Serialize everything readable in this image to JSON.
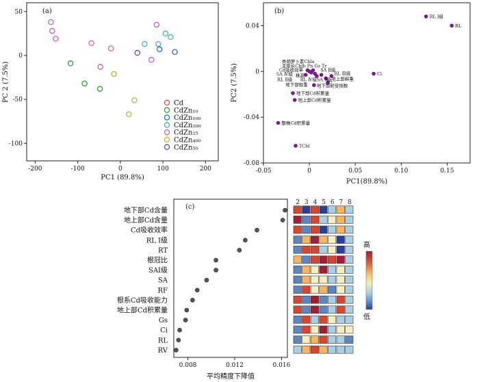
{
  "panels": {
    "a": {
      "label": "(a)",
      "xlabel": "PC1 (89.8%)",
      "ylabel": "PC 2 (7.5%)",
      "xlim": [
        -220,
        230
      ],
      "ylim": [
        -120,
        60
      ],
      "xticks": [
        "-200",
        "-100",
        "0",
        "100",
        "200"
      ],
      "xtick_values": [
        -200,
        -100,
        0,
        100,
        200
      ],
      "yticks": [
        "50",
        "0",
        "-50",
        "-100"
      ],
      "ytick_values": [
        50,
        0,
        -50,
        -100
      ],
      "legend_position": "right-bottom",
      "legend": [
        {
          "key": "Cd",
          "label": "Cd",
          "color": "#d94f4f"
        },
        {
          "key": "CdZn10",
          "label": "CdZn₁₀",
          "color": "#3a9a3a"
        },
        {
          "key": "CdZn100",
          "label": "CdZn₁₀₀",
          "color": "#2a6fbf"
        },
        {
          "key": "CdZn200",
          "label": "CdZn₂₀₀",
          "color": "#4ab0c8"
        },
        {
          "key": "CdZn25",
          "label": "CdZn₂₅",
          "color": "#d060b8"
        },
        {
          "key": "CdZn400",
          "label": "CdZn₄₀₀",
          "color": "#c9b22a"
        },
        {
          "key": "CdZn50",
          "label": "CdZn₅₀",
          "color": "#6a4aa8"
        }
      ],
      "points": [
        {
          "x": -163,
          "y": 38,
          "g": "CdZn25"
        },
        {
          "x": -160,
          "y": 28,
          "g": "CdZn25"
        },
        {
          "x": -152,
          "y": 19,
          "g": "CdZn25"
        },
        {
          "x": -117,
          "y": -9,
          "g": "CdZn10"
        },
        {
          "x": -84,
          "y": -32,
          "g": "CdZn10"
        },
        {
          "x": -68,
          "y": 14,
          "g": "CdZn25"
        },
        {
          "x": -47,
          "y": -13,
          "g": "CdZn25"
        },
        {
          "x": -48,
          "y": -38,
          "g": "CdZn10"
        },
        {
          "x": -22,
          "y": 8,
          "g": "CdZn25"
        },
        {
          "x": -15,
          "y": -21,
          "g": "CdZn400"
        },
        {
          "x": 20,
          "y": -67,
          "g": "CdZn400"
        },
        {
          "x": 33,
          "y": -51,
          "g": "CdZn400"
        },
        {
          "x": 40,
          "y": 3,
          "g": "CdZn50"
        },
        {
          "x": 57,
          "y": 13,
          "g": "CdZn200"
        },
        {
          "x": 73,
          "y": -5,
          "g": "CdZn25"
        },
        {
          "x": 85,
          "y": 35,
          "g": "CdZn25"
        },
        {
          "x": 89,
          "y": 13,
          "g": "CdZn200"
        },
        {
          "x": 92,
          "y": 7,
          "g": "CdZn100"
        },
        {
          "x": 106,
          "y": 25,
          "g": "CdZn200"
        },
        {
          "x": 118,
          "y": 21,
          "g": "CdZn200"
        },
        {
          "x": 128,
          "y": 4,
          "g": "CdZn100"
        }
      ]
    },
    "b": {
      "label": "(b)",
      "xlabel": "PC1(89.8%)",
      "ylabel": "PC2 (7.5%)",
      "xlim": [
        -0.05,
        0.175
      ],
      "ylim": [
        -0.08,
        0.06
      ],
      "xticks": [
        "-0.05",
        "0",
        "0.05",
        "0.10",
        "0.15"
      ],
      "xtick_values": [
        -0.05,
        0,
        0.05,
        0.1,
        0.15
      ],
      "yticks": [
        "0.04",
        "0",
        "-0.04",
        "-0.08"
      ],
      "ytick_values": [
        0.04,
        0,
        -0.04,
        -0.08
      ],
      "color": "#7a1a8a",
      "points": [
        {
          "x": 0.127,
          "y": 0.048,
          "label": "RL Ⅰ级",
          "pos": "right"
        },
        {
          "x": 0.155,
          "y": 0.04,
          "label": "RL",
          "pos": "right"
        },
        {
          "x": 0.07,
          "y": -0.002,
          "label": "Ci",
          "pos": "right"
        },
        {
          "x": -0.002,
          "y": 0.001,
          "label": "",
          "pos": "none"
        },
        {
          "x": 0.0,
          "y": 0.0,
          "label": "",
          "pos": "none"
        },
        {
          "x": 0.002,
          "y": -0.001,
          "label": "",
          "pos": "none"
        },
        {
          "x": 0.004,
          "y": 0.001,
          "label": "",
          "pos": "none"
        },
        {
          "x": 0.006,
          "y": -0.002,
          "label": "",
          "pos": "none"
        },
        {
          "x": -0.004,
          "y": -0.003,
          "label": "",
          "pos": "none"
        },
        {
          "x": 0.008,
          "y": -0.004,
          "label": "",
          "pos": "none"
        },
        {
          "x": 0.013,
          "y": -0.003,
          "label": "",
          "pos": "none"
        },
        {
          "x": 0.018,
          "y": -0.006,
          "label": "",
          "pos": "none"
        },
        {
          "x": 0.024,
          "y": -0.004,
          "label": "",
          "pos": "none"
        },
        {
          "x": 0.02,
          "y": -0.01,
          "label": "",
          "pos": "none"
        },
        {
          "x": 0.005,
          "y": -0.012,
          "label": "",
          "pos": "none"
        },
        {
          "x": -0.018,
          "y": -0.019,
          "label": "地下部Cd积累量",
          "pos": "right"
        },
        {
          "x": -0.016,
          "y": -0.025,
          "label": "地上部Cd积累量",
          "pos": "right"
        },
        {
          "x": -0.034,
          "y": -0.045,
          "label": "整株Cd积累量",
          "pos": "right"
        },
        {
          "x": -0.015,
          "y": -0.065,
          "label": "TChl",
          "pos": "right"
        }
      ],
      "cluster_labels": [
        {
          "text": "类胡萝卜素Chla",
          "x": -0.03,
          "y": 0.0075
        },
        {
          "text": "主根长Chlb Pn Gs Tr",
          "x": -0.03,
          "y": 0.0035
        },
        {
          "text": "Cd吸收效率",
          "x": -0.033,
          "y": -0.0001
        },
        {
          "text": "SA Ⅱ级",
          "x": 0.012,
          "y": -0.0001
        },
        {
          "text": "SA Ⅳ级",
          "x": -0.036,
          "y": -0.0038
        },
        {
          "text": "株高",
          "x": -0.015,
          "y": -0.0048
        },
        {
          "text": "RL Ⅲ级",
          "x": 0.027,
          "y": -0.0032
        },
        {
          "text": "RL Ⅱ级",
          "x": -0.035,
          "y": -0.0085
        },
        {
          "text": "RL Ⅳ级",
          "x": -0.01,
          "y": -0.0085
        },
        {
          "text": "SA Ⅰ级",
          "x": 0.008,
          "y": -0.0085
        },
        {
          "text": "SA",
          "x": 0.018,
          "y": -0.0095
        },
        {
          "text": "地上部鲜重",
          "x": 0.024,
          "y": -0.008
        },
        {
          "text": "地下部鲜重",
          "x": -0.026,
          "y": -0.013
        },
        {
          "text": "地下部耐受指数",
          "x": 0.008,
          "y": -0.014
        }
      ]
    },
    "c": {
      "label": "(c)",
      "xlabel": "平均精度下降值",
      "xlim": [
        0.0068,
        0.0165
      ],
      "xticks": [
        "0.008",
        "0.012",
        "0.016"
      ],
      "xtick_values": [
        0.008,
        0.012,
        0.016
      ],
      "rows": [
        {
          "label": "地下部Cd含量",
          "value": 0.0163
        },
        {
          "label": "地上部Cd含量",
          "value": 0.0161
        },
        {
          "label": "Cd吸收效率",
          "value": 0.0139
        },
        {
          "label": "RL Ⅰ级",
          "value": 0.0129
        },
        {
          "label": "RT",
          "value": 0.0124
        },
        {
          "label": "根冠比",
          "value": 0.0104
        },
        {
          "label": "SAⅠ级",
          "value": 0.0104
        },
        {
          "label": "SA",
          "value": 0.0096
        },
        {
          "label": "RF",
          "value": 0.0088
        },
        {
          "label": "根系Cd吸收能力",
          "value": 0.0084
        },
        {
          "label": "地上部Cd积累量",
          "value": 0.0079
        },
        {
          "label": "Gs",
          "value": 0.0078
        },
        {
          "label": "Ci",
          "value": 0.0073
        },
        {
          "label": "RL",
          "value": 0.0072
        },
        {
          "label": "RV",
          "value": 0.007
        }
      ],
      "heatmap_columns": [
        "2",
        "3",
        "4",
        "5",
        "6",
        "7",
        "8"
      ],
      "heatmap_colors": [
        "#2c3f97",
        "#5b86c4",
        "#a8cfe4",
        "#f4eec0",
        "#f7b562",
        "#d9452d",
        "#a31d34"
      ],
      "heatmap": [
        [
          5,
          0,
          5,
          0,
          2,
          4,
          2
        ],
        [
          6,
          1,
          5,
          2,
          3,
          4,
          2
        ],
        [
          5,
          1,
          5,
          0,
          2,
          4,
          2
        ],
        [
          1,
          4,
          6,
          4,
          3,
          0,
          2
        ],
        [
          1,
          5,
          5,
          2,
          3,
          0,
          2
        ],
        [
          4,
          1,
          5,
          6,
          5,
          6,
          2
        ],
        [
          1,
          4,
          3,
          6,
          2,
          3,
          2
        ],
        [
          1,
          4,
          3,
          3,
          2,
          3,
          2
        ],
        [
          1,
          5,
          3,
          4,
          1,
          3,
          2
        ],
        [
          5,
          1,
          6,
          1,
          2,
          5,
          2
        ],
        [
          5,
          1,
          6,
          1,
          2,
          5,
          2
        ],
        [
          1,
          5,
          2,
          5,
          3,
          2,
          2
        ],
        [
          1,
          5,
          3,
          6,
          2,
          3,
          3
        ],
        [
          1,
          3,
          4,
          5,
          2,
          2,
          1
        ],
        [
          2,
          4,
          5,
          4,
          2,
          2,
          2
        ]
      ],
      "colorbar": {
        "high": "高",
        "low": "低"
      }
    }
  }
}
